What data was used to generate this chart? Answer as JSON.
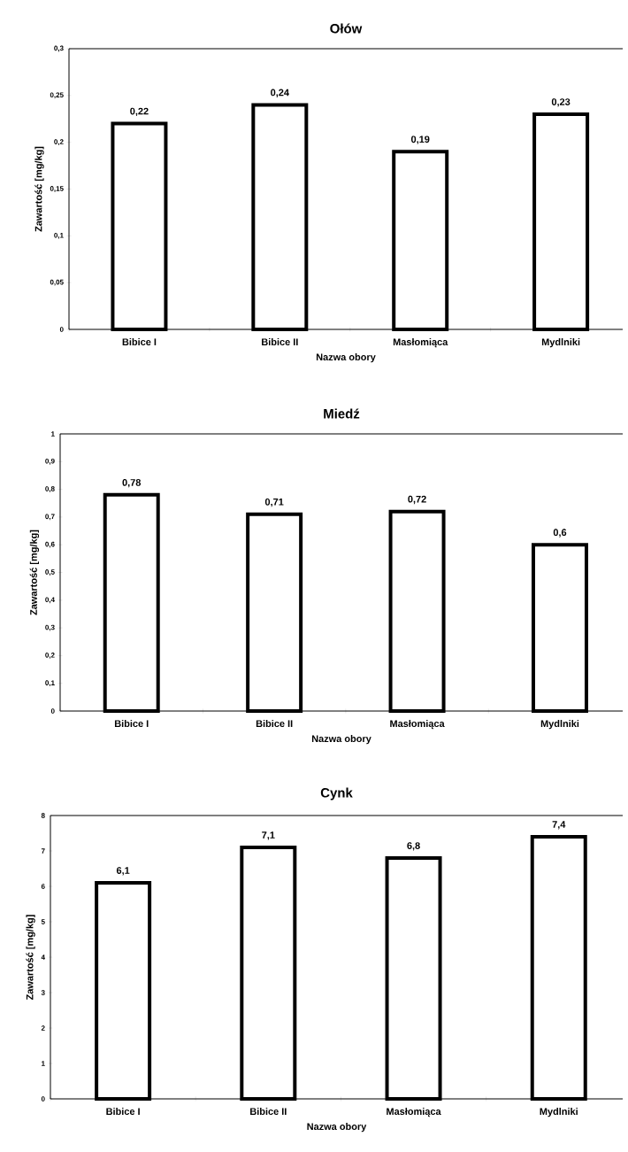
{
  "chart_data": [
    {
      "type": "bar",
      "title": "Ołów",
      "xlabel": "Nazwa obory",
      "ylabel": "Zawartość [mg/kg]",
      "categories": [
        "Bibice I",
        "Bibice II",
        "Masłomiąca",
        "Mydlniki"
      ],
      "values": [
        0.22,
        0.24,
        0.19,
        0.23
      ],
      "value_labels": [
        "0,22",
        "0,24",
        "0,19",
        "0,23"
      ],
      "color": "#ffffff",
      "ylim": [
        0,
        0.3
      ],
      "yticks": [
        0,
        {
          "value": 0.05,
          "label": "0,05"
        },
        {
          "value": 0.1,
          "label": "0,1"
        },
        {
          "value": 0.15,
          "label": "0,15"
        },
        {
          "value": 0.2,
          "label": "0,2"
        },
        {
          "value": 0.25,
          "label": "0,25"
        },
        {
          "value": 0.3,
          "label": "0,3"
        }
      ]
    },
    {
      "type": "bar",
      "title": "Miedź",
      "xlabel": "Nazwa obory",
      "ylabel": "Zawartość [mg/kg]",
      "categories": [
        "Bibice I",
        "Bibice II",
        "Masłomiąca",
        "Mydlniki"
      ],
      "values": [
        0.78,
        0.71,
        0.72,
        0.6
      ],
      "value_labels": [
        "0,78",
        "0,71",
        "0,72",
        "0,6"
      ],
      "color": "#ffffff",
      "ylim": [
        0,
        1
      ],
      "yticks": [
        0,
        {
          "value": 0.1,
          "label": "0,1"
        },
        {
          "value": 0.2,
          "label": "0,2"
        },
        {
          "value": 0.3,
          "label": "0,3"
        },
        {
          "value": 0.4,
          "label": "0,4"
        },
        {
          "value": 0.5,
          "label": "0,5"
        },
        {
          "value": 0.6,
          "label": "0,6"
        },
        {
          "value": 0.7,
          "label": "0,7"
        },
        {
          "value": 0.8,
          "label": "0,8"
        },
        {
          "value": 0.9,
          "label": "0,9"
        },
        1
      ]
    },
    {
      "type": "bar",
      "title": "Cynk",
      "xlabel": "Nazwa obory",
      "ylabel": "Zawartość [mg/kg]",
      "categories": [
        "Bibice I",
        "Bibice II",
        "Masłomiąca",
        "Mydlniki"
      ],
      "values": [
        6.1,
        7.1,
        6.8,
        7.4
      ],
      "value_labels": [
        "6,1",
        "7,1",
        "6,8",
        "7,4"
      ],
      "color": "#ffffff",
      "ylim": [
        0,
        8
      ],
      "yticks": [
        0,
        1,
        2,
        3,
        4,
        5,
        6,
        7,
        8
      ]
    }
  ]
}
